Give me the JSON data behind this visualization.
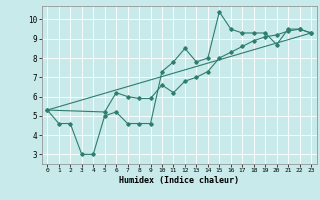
{
  "title": "",
  "xlabel": "Humidex (Indice chaleur)",
  "background_color": "#c8eaea",
  "grid_color": "#ffffff",
  "line_color": "#2e7d6e",
  "xlim": [
    -0.5,
    23.5
  ],
  "ylim": [
    2.5,
    10.7
  ],
  "xticks": [
    0,
    1,
    2,
    3,
    4,
    5,
    6,
    7,
    8,
    9,
    10,
    11,
    12,
    13,
    14,
    15,
    16,
    17,
    18,
    19,
    20,
    21,
    22,
    23
  ],
  "yticks": [
    3,
    4,
    5,
    6,
    7,
    8,
    9,
    10
  ],
  "line1_x": [
    0,
    1,
    2,
    3,
    4,
    5,
    6,
    7,
    8,
    9,
    10,
    11,
    12,
    13,
    14,
    15,
    16,
    17,
    18,
    19,
    20,
    21,
    22,
    23
  ],
  "line1_y": [
    5.3,
    4.6,
    4.6,
    3.0,
    3.0,
    5.0,
    5.2,
    4.6,
    4.6,
    4.6,
    7.3,
    7.8,
    8.5,
    7.8,
    8.0,
    10.4,
    9.5,
    9.3,
    9.3,
    9.3,
    8.7,
    9.5,
    9.5,
    9.3
  ],
  "line2_x": [
    0,
    5,
    6,
    7,
    8,
    9,
    10,
    11,
    12,
    13,
    14,
    15,
    16,
    17,
    18,
    19,
    20,
    21,
    22,
    23
  ],
  "line2_y": [
    5.3,
    5.2,
    6.2,
    6.0,
    5.9,
    5.9,
    6.6,
    6.2,
    6.8,
    7.0,
    7.3,
    8.0,
    8.3,
    8.6,
    8.9,
    9.1,
    9.2,
    9.4,
    9.5,
    9.3
  ],
  "line3_x": [
    0,
    23
  ],
  "line3_y": [
    5.3,
    9.3
  ]
}
